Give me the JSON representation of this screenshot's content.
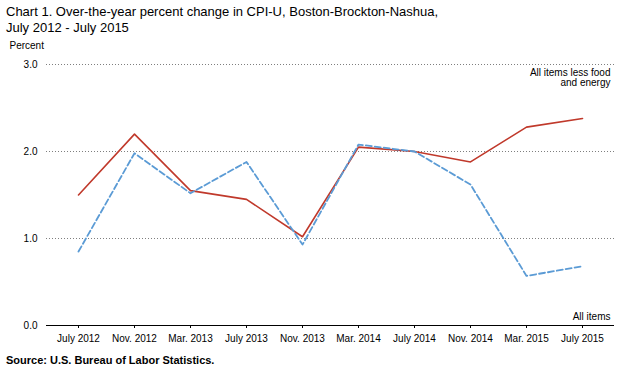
{
  "chart_data": {
    "type": "line",
    "title": "Chart 1.  Over-the-year percent change in CPI-U, Boston-Brockton-Nashua,",
    "subtitle": "July 2012 - July 2015",
    "ylabel": "Percent",
    "source": "Source: U.S. Bureau of Labor Statistics.",
    "categories": [
      "July 2012",
      "Nov. 2012",
      "Mar. 2013",
      "July 2013",
      "Nov. 2013",
      "Mar. 2014",
      "July 2014",
      "Nov. 2014",
      "Mar. 2015",
      "July 2015"
    ],
    "series": [
      {
        "name": "All items less food\nand energy",
        "color": "#c0392b",
        "line_style": "solid",
        "values": [
          1.5,
          2.2,
          1.55,
          1.45,
          1.02,
          2.05,
          2.0,
          1.88,
          2.28,
          2.38
        ]
      },
      {
        "name": "All items",
        "color": "#5b9bd5",
        "line_style": "dashed",
        "values": [
          0.85,
          1.98,
          1.52,
          1.88,
          0.93,
          2.08,
          2.0,
          1.62,
          0.57,
          0.68
        ]
      }
    ],
    "ylim": [
      0.0,
      3.0
    ],
    "yticks": [
      {
        "value": 0,
        "label": "0.0"
      },
      {
        "value": 1,
        "label": "1.0"
      },
      {
        "value": 2,
        "label": "2.0"
      },
      {
        "value": 3,
        "label": "3.0"
      }
    ],
    "grid": true
  }
}
